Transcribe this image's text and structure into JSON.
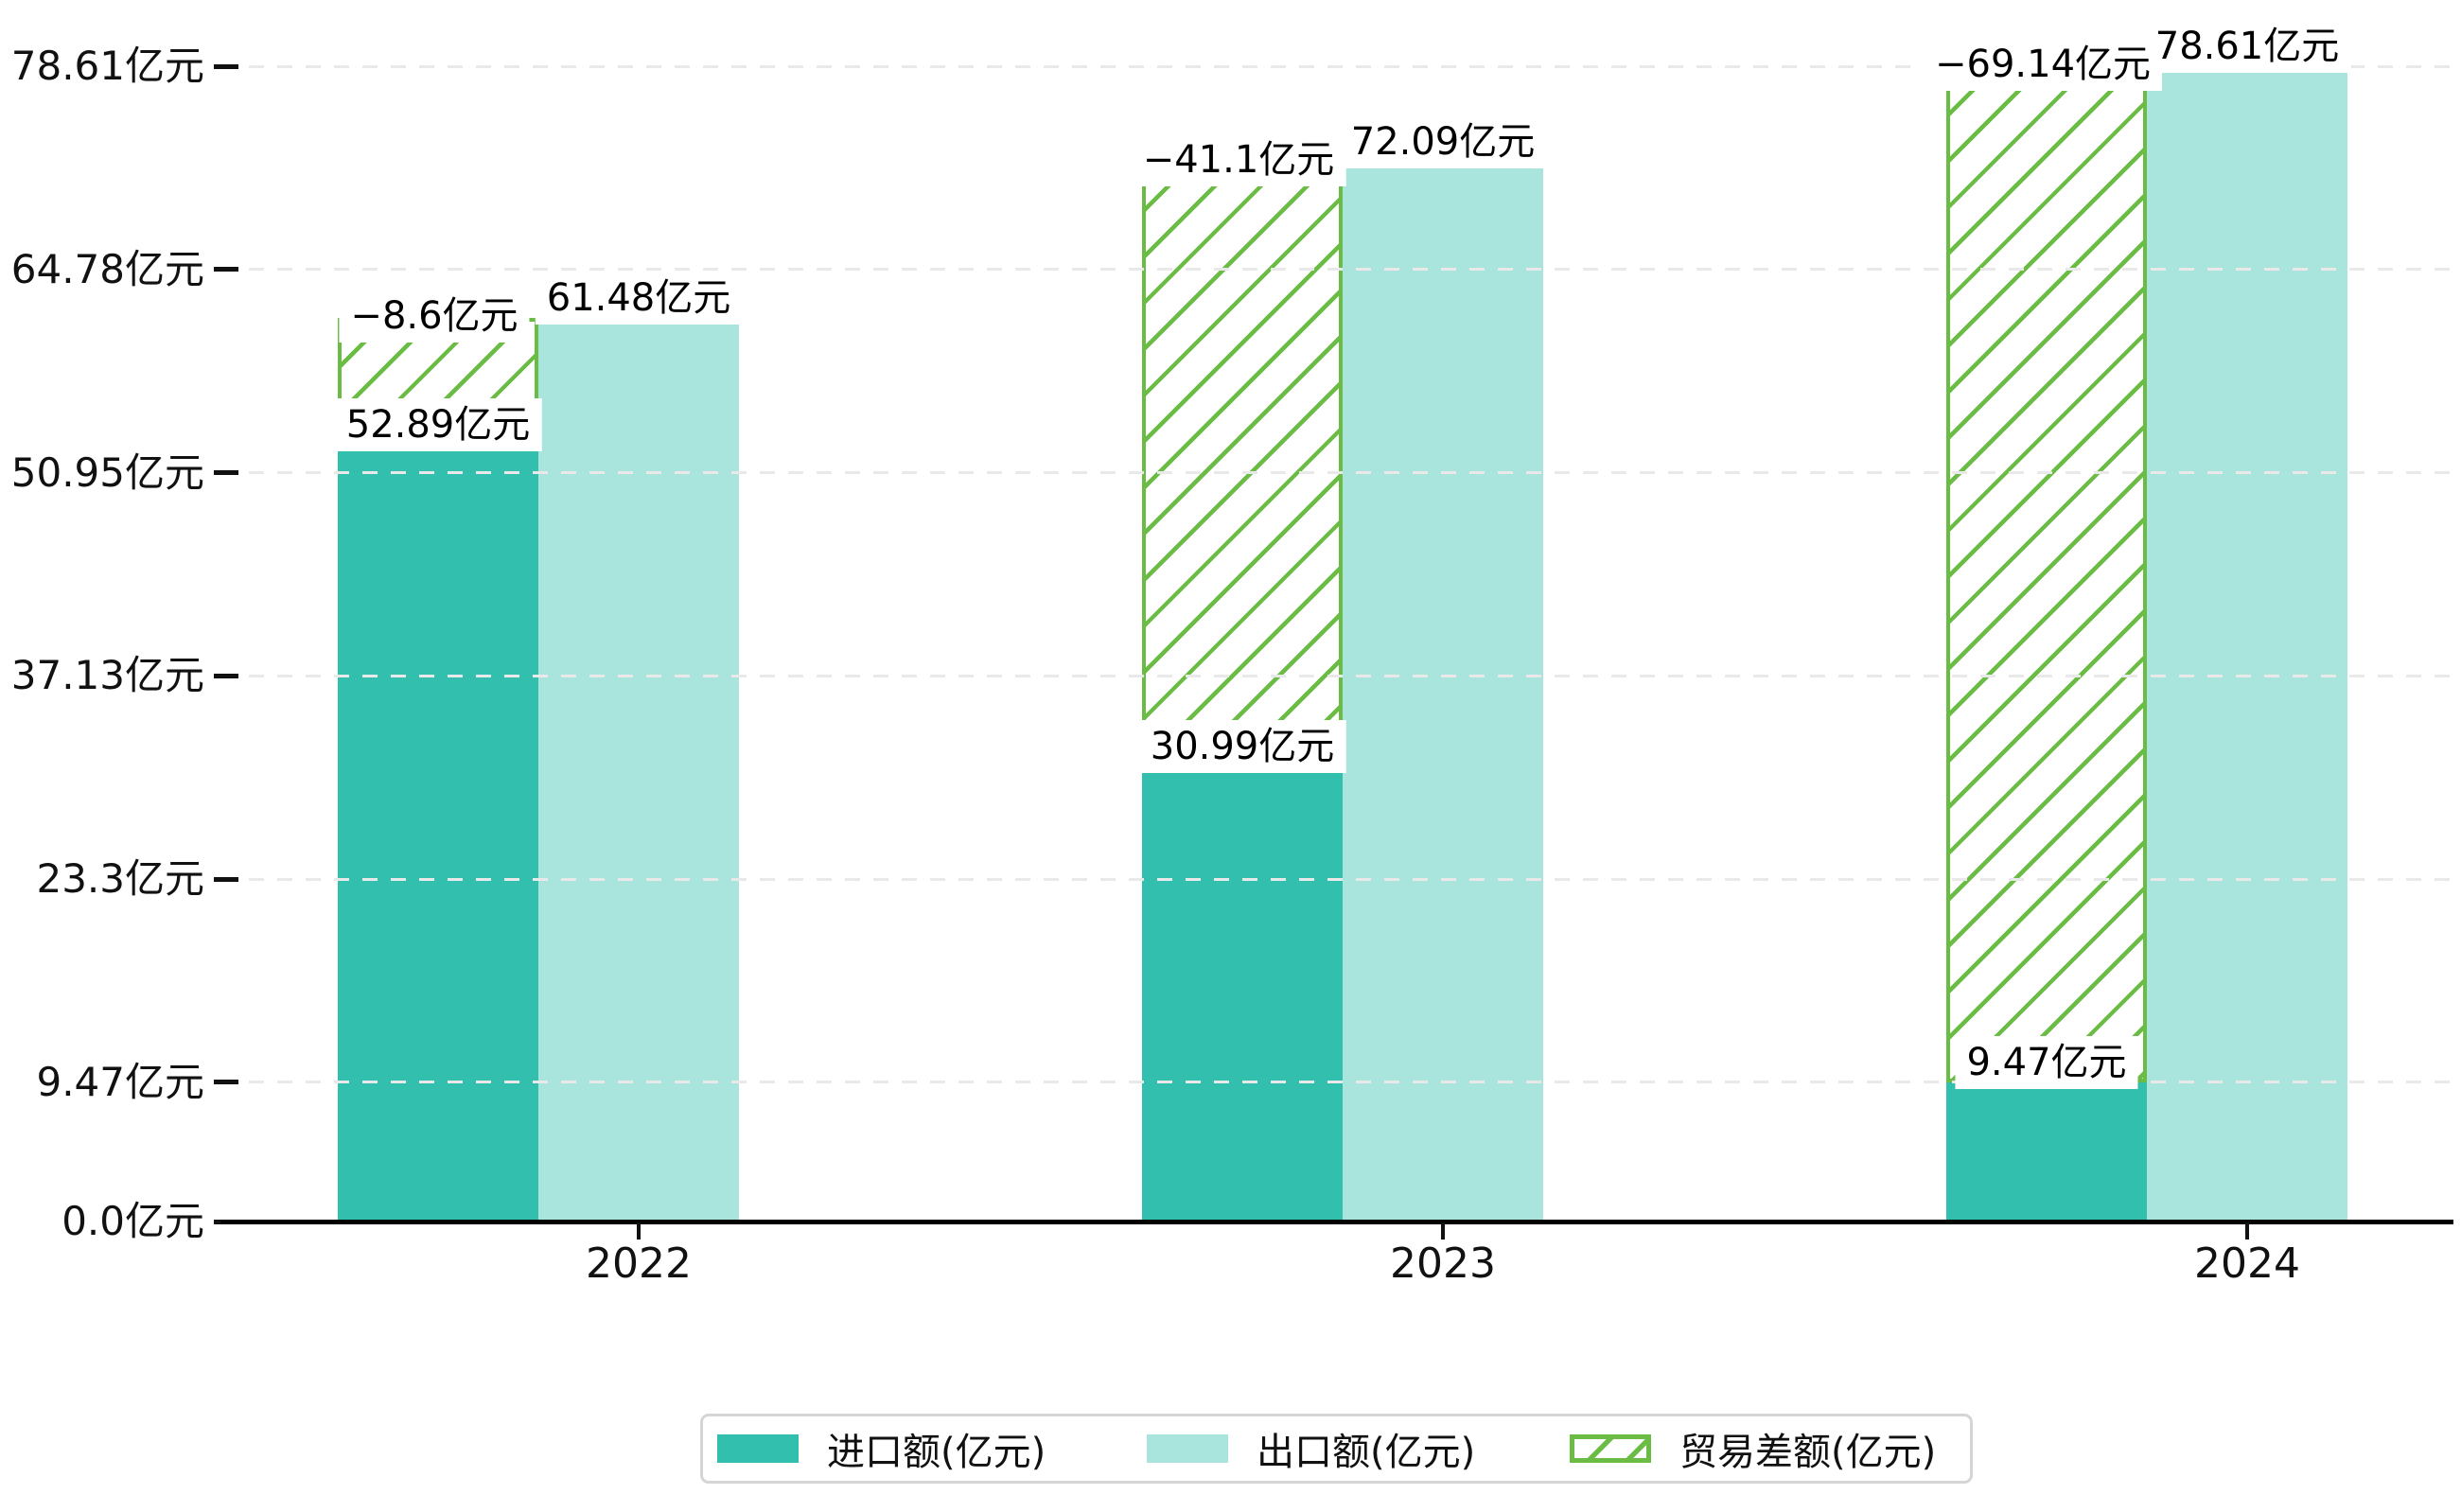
{
  "chart_data": {
    "type": "bar",
    "unit": "亿元",
    "categories": [
      "2022",
      "2023",
      "2024"
    ],
    "series": [
      {
        "name": "进口额(亿元)",
        "role": "import",
        "values": [
          52.89,
          30.99,
          9.47
        ],
        "color": "#32bfad",
        "bar_labels": [
          "52.89亿元",
          "30.99亿元",
          "9.47亿元"
        ]
      },
      {
        "name": "出口额(亿元)",
        "role": "export",
        "values": [
          61.48,
          72.09,
          78.61
        ],
        "color": "#aae5dd",
        "bar_labels": [
          "61.48亿元",
          "72.09亿元",
          "78.61亿元"
        ]
      },
      {
        "name": "贸易差额(亿元)",
        "role": "trade-balance",
        "values": [
          -8.6,
          -41.1,
          -69.14
        ],
        "color": "#6abc44",
        "pattern": "diagonal-hatch",
        "spans": "from import-bar top to export-bar top",
        "bar_labels": [
          "−8.6亿元",
          "−41.1亿元",
          "−69.14亿元"
        ]
      }
    ],
    "y_ticks": [
      {
        "value": 0.0,
        "label": "0.0亿元"
      },
      {
        "value": 9.47,
        "label": "9.47亿元"
      },
      {
        "value": 23.3,
        "label": "23.3亿元"
      },
      {
        "value": 37.13,
        "label": "37.13亿元"
      },
      {
        "value": 50.95,
        "label": "50.95亿元"
      },
      {
        "value": 64.78,
        "label": "64.78亿元"
      },
      {
        "value": 78.61,
        "label": "78.61亿元"
      }
    ],
    "ylim": [
      0,
      82
    ],
    "grid": "horizontal-dashed",
    "legend_position": "bottom-center",
    "colors": {
      "import": "#32bfad",
      "export": "#aae5dd",
      "balance": "#6abc44",
      "gridline": "#e9e9e9",
      "axis": "#000000",
      "text": "#111111",
      "legend_border": "#d5d5d5",
      "background": "#ffffff"
    }
  }
}
